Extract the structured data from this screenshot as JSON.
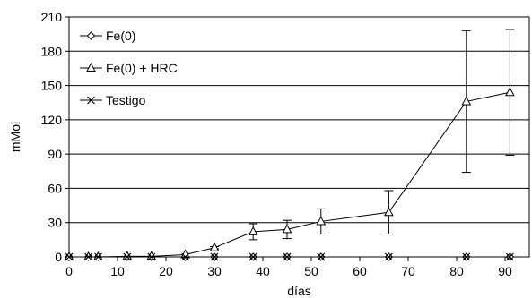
{
  "chart_data": {
    "type": "line",
    "xlabel": "días",
    "ylabel": "mMol",
    "xlim": [
      0,
      95
    ],
    "ylim": [
      0,
      210
    ],
    "xticks": [
      0,
      10,
      20,
      30,
      40,
      50,
      60,
      70,
      80,
      90
    ],
    "yticks": [
      0,
      30,
      60,
      90,
      120,
      150,
      180,
      210
    ],
    "grid": "horizontal",
    "legend_position": "top-left",
    "series": [
      {
        "name": "Fe(0)",
        "marker": "diamond",
        "x": [
          0,
          4,
          6,
          12,
          17,
          24,
          30,
          38,
          45,
          52,
          66,
          82,
          91
        ],
        "y": [
          0,
          0,
          0,
          0,
          0,
          0,
          0,
          0,
          0,
          0,
          0,
          0,
          0
        ]
      },
      {
        "name": "Fe(0) + HRC",
        "marker": "triangle",
        "x": [
          0,
          4,
          6,
          12,
          17,
          24,
          30,
          38,
          45,
          52,
          66,
          82,
          91
        ],
        "y": [
          0,
          0,
          0,
          0.5,
          0.5,
          2,
          8,
          22,
          24,
          31,
          39,
          136,
          144
        ],
        "error": [
          0,
          0,
          0,
          0,
          0,
          0,
          1,
          7,
          8,
          11,
          19,
          62,
          55
        ]
      },
      {
        "name": "Testigo",
        "marker": "x",
        "x": [
          0,
          4,
          6,
          12,
          17,
          24,
          30,
          38,
          45,
          52,
          66,
          82,
          91
        ],
        "y": [
          0,
          0,
          0,
          0,
          0,
          0,
          0,
          0,
          0,
          0,
          0,
          0,
          0
        ]
      }
    ]
  }
}
